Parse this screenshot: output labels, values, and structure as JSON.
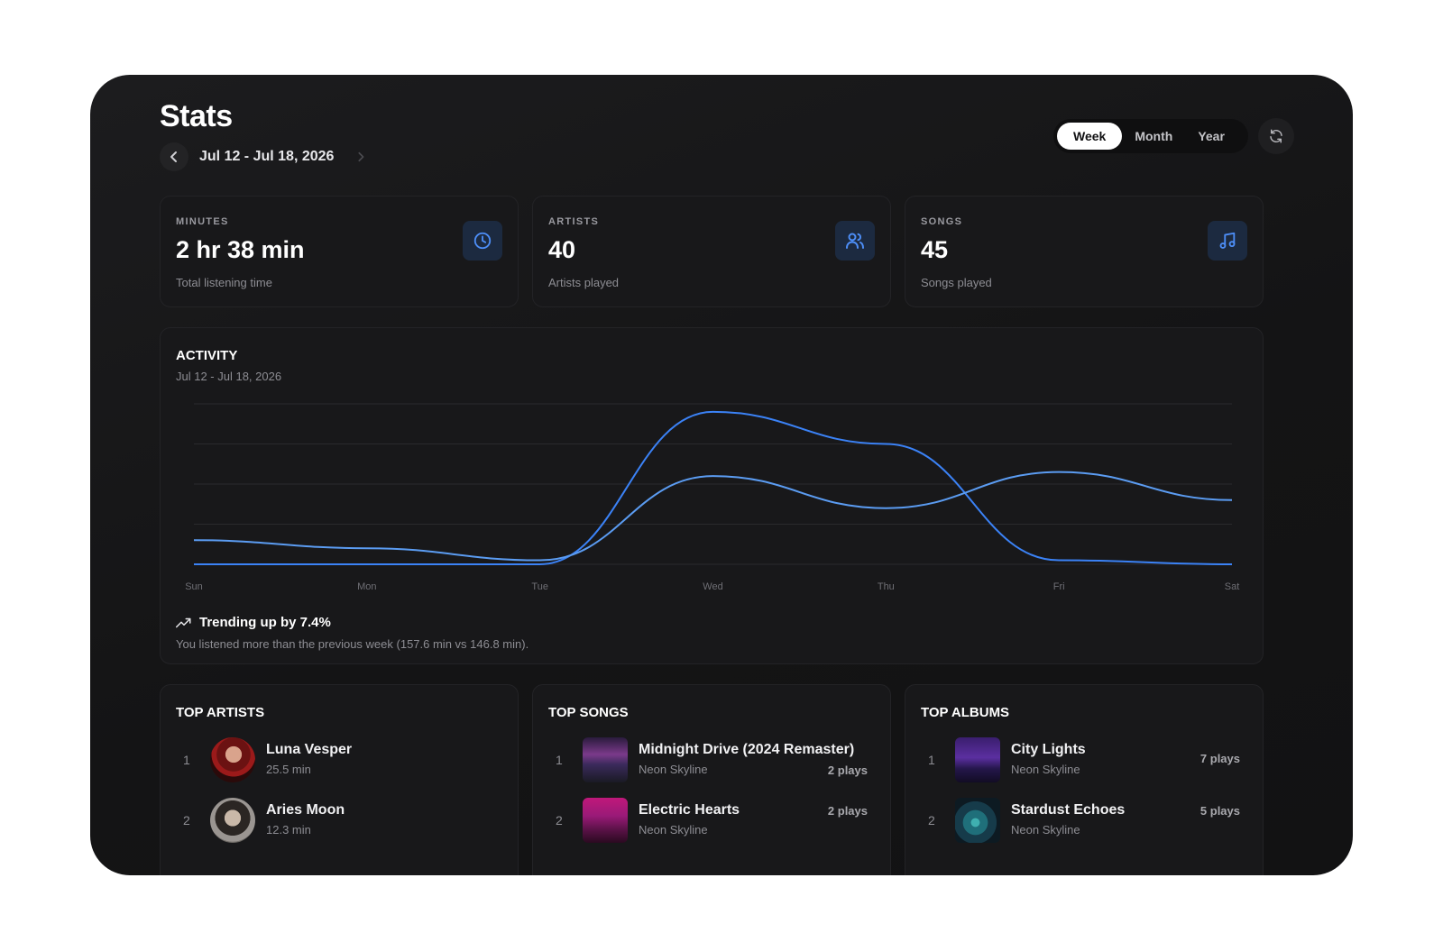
{
  "page": {
    "title": "Stats",
    "date_range": "Jul 12 - Jul 18, 2026"
  },
  "period_tabs": [
    {
      "label": "Week",
      "active": true
    },
    {
      "label": "Month",
      "active": false
    },
    {
      "label": "Year",
      "active": false
    }
  ],
  "icons": {
    "prev": "chevron-left-icon",
    "next": "chevron-right-icon",
    "refresh": "refresh-icon",
    "minutes": "clock-icon",
    "artists": "users-icon",
    "songs": "music-note-icon",
    "trend": "trending-up-icon"
  },
  "colors": {
    "accent": "#3b82f6",
    "accent_light": "#5b9cf2"
  },
  "stats": [
    {
      "label": "MINUTES",
      "value": "2 hr 38 min",
      "sub": "Total listening time"
    },
    {
      "label": "ARTISTS",
      "value": "40",
      "sub": "Artists played"
    },
    {
      "label": "SONGS",
      "value": "45",
      "sub": "Songs played"
    }
  ],
  "activity": {
    "title": "ACTIVITY",
    "range": "Jul 12 - Jul 18, 2026",
    "trend_label": "Trending up by 7.4%",
    "trend_sub": "You listened more than the previous week (157.6 min vs 146.8 min)."
  },
  "chart_data": {
    "type": "line",
    "x": [
      "Sun",
      "Mon",
      "Tue",
      "Wed",
      "Thu",
      "Fri",
      "Sat"
    ],
    "ylim": [
      0,
      40
    ],
    "grid": true,
    "series": [
      {
        "values": [
          0,
          0,
          0,
          38,
          30,
          1,
          0
        ],
        "color": "#3b82f6"
      },
      {
        "values": [
          6,
          4,
          1,
          22,
          14,
          23,
          16
        ],
        "color": "#5b9cf2"
      }
    ]
  },
  "top_artists": {
    "title": "TOP ARTISTS",
    "items": [
      {
        "rank": "1",
        "name": "Luna Vesper",
        "sub": "25.5 min"
      },
      {
        "rank": "2",
        "name": "Aries Moon",
        "sub": "12.3 min"
      }
    ]
  },
  "top_songs": {
    "title": "TOP SONGS",
    "items": [
      {
        "rank": "1",
        "name": "Midnight Drive (2024 Remaster)",
        "sub": "Neon Skyline",
        "plays": "2 plays"
      },
      {
        "rank": "2",
        "name": "Electric Hearts",
        "sub": "Neon Skyline",
        "plays": "2 plays"
      }
    ]
  },
  "top_albums": {
    "title": "TOP ALBUMS",
    "items": [
      {
        "rank": "1",
        "name": "City Lights",
        "sub": "Neon Skyline",
        "plays": "7 plays"
      },
      {
        "rank": "2",
        "name": "Stardust Echoes",
        "sub": "Neon Skyline",
        "plays": "5 plays"
      }
    ]
  }
}
